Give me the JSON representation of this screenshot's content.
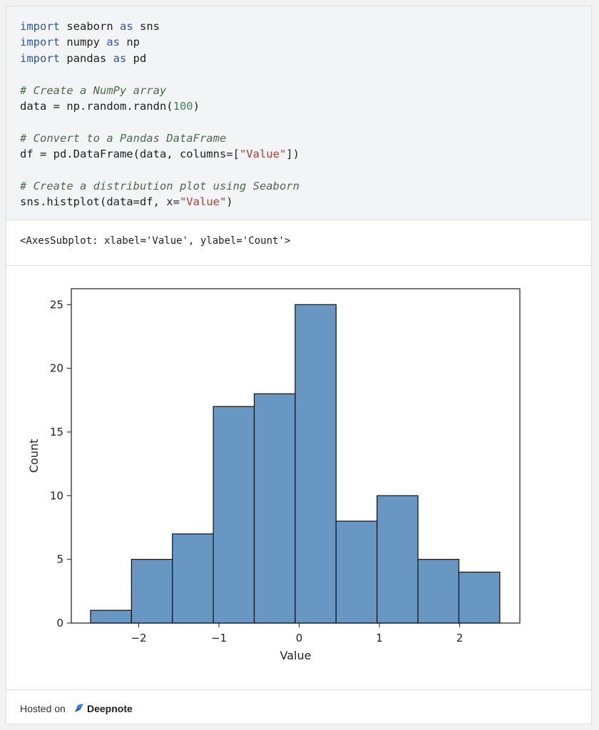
{
  "code": {
    "lines": [
      [
        {
          "t": "import",
          "c": "kw"
        },
        {
          "t": " seaborn ",
          "c": ""
        },
        {
          "t": "as",
          "c": "kw"
        },
        {
          "t": " sns",
          "c": ""
        }
      ],
      [
        {
          "t": "import",
          "c": "kw"
        },
        {
          "t": " numpy ",
          "c": ""
        },
        {
          "t": "as",
          "c": "kw"
        },
        {
          "t": " np",
          "c": ""
        }
      ],
      [
        {
          "t": "import",
          "c": "kw"
        },
        {
          "t": " pandas ",
          "c": ""
        },
        {
          "t": "as",
          "c": "kw"
        },
        {
          "t": " pd",
          "c": ""
        }
      ],
      [],
      [
        {
          "t": "# Create a NumPy array",
          "c": "cm"
        }
      ],
      [
        {
          "t": "data = np.random.randn(",
          "c": ""
        },
        {
          "t": "100",
          "c": "num"
        },
        {
          "t": ")",
          "c": ""
        }
      ],
      [],
      [
        {
          "t": "# Convert to a Pandas DataFrame",
          "c": "cm"
        }
      ],
      [
        {
          "t": "df = pd.DataFrame(data, columns=[",
          "c": ""
        },
        {
          "t": "\"Value\"",
          "c": "str"
        },
        {
          "t": "])",
          "c": ""
        }
      ],
      [],
      [
        {
          "t": "# Create a distribution plot using Seaborn",
          "c": "cm"
        }
      ],
      [
        {
          "t": "sns.histplot(data=df, x=",
          "c": ""
        },
        {
          "t": "\"Value\"",
          "c": "str"
        },
        {
          "t": ")",
          "c": ""
        }
      ]
    ]
  },
  "output": {
    "text": "<AxesSubplot: xlabel='Value', ylabel='Count'>"
  },
  "chart_data": {
    "type": "bar",
    "subtype": "histogram",
    "title": "",
    "xlabel": "Value",
    "ylabel": "Count",
    "bin_edges": [
      -2.6,
      -2.09,
      -1.58,
      -1.07,
      -0.56,
      -0.05,
      0.46,
      0.97,
      1.48,
      1.99,
      2.5
    ],
    "values": [
      1,
      5,
      7,
      17,
      18,
      25,
      8,
      10,
      5,
      4
    ],
    "xticks": [
      -2,
      -1,
      0,
      1,
      2
    ],
    "xtick_labels": [
      "−2",
      "−1",
      "0",
      "1",
      "2"
    ],
    "yticks": [
      0,
      5,
      10,
      15,
      20,
      25
    ],
    "ytick_labels": [
      "0",
      "5",
      "10",
      "15",
      "20",
      "25"
    ],
    "xlim": [
      -2.84,
      2.75
    ],
    "ylim": [
      0,
      26.25
    ],
    "grid": false,
    "bar_color": "#6897c4",
    "edge_color": "#1a1a1a"
  },
  "footer": {
    "hosted_label": "Hosted on",
    "brand_label": "Deepnote"
  },
  "colors": {
    "keyword": "#2b57a8",
    "comment": "#4e6a4e",
    "string": "#b53d33",
    "number": "#3a8a52"
  }
}
